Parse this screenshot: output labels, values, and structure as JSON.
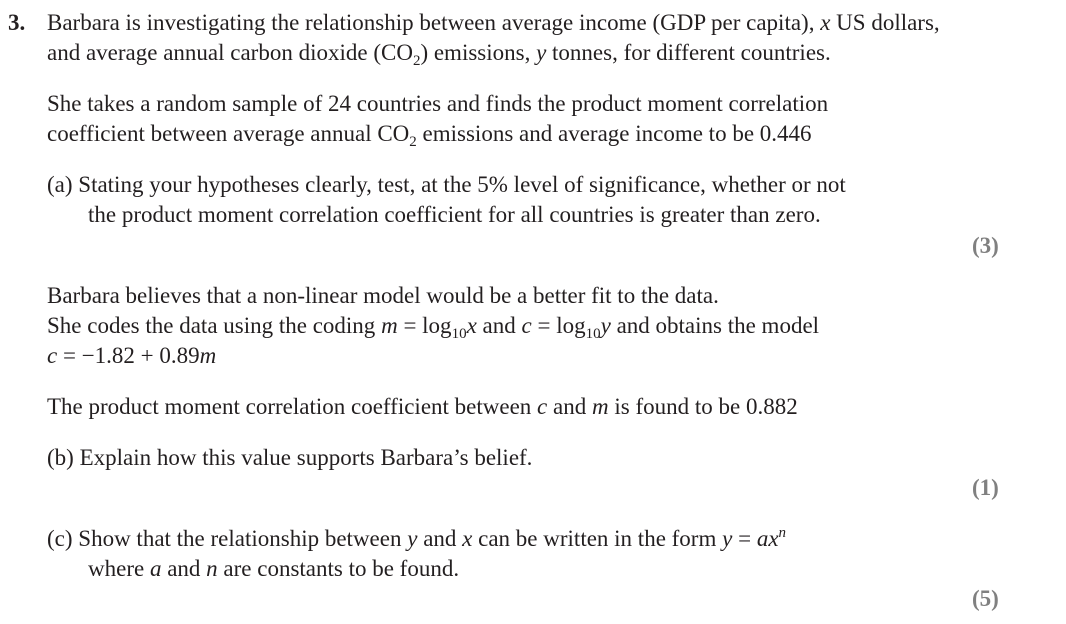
{
  "question": {
    "number": "3.",
    "intro": {
      "line1": {
        "a": "Barbara is investigating the relationship between average income (GDP per capita), ",
        "var_x": "x",
        "b": " US dollars,"
      },
      "line2": {
        "a": "and average annual carbon dioxide (CO",
        "sub2": "2",
        "b": ") emissions, ",
        "var_y": "y",
        "c": " tonnes, for different countries."
      }
    },
    "sample": {
      "line1": "She takes a random sample of 24 countries and finds the product moment correlation",
      "line2": {
        "a": "coefficient between average annual CO",
        "sub2": "2",
        "b": " emissions and average income to be 0.446"
      }
    },
    "part_a": {
      "line1": "(a) Stating your hypotheses clearly, test, at the 5% level of significance, whether or not",
      "line2": "the product moment correlation coefficient for all countries is greater than zero.",
      "marks": "(3)"
    },
    "model": {
      "line1": "Barbara believes that a non-linear model would be a better fit to the data.",
      "line2": {
        "a": "She codes the data using the coding  ",
        "m": "m",
        "eq1": " = log",
        "sub1": "10",
        "x": "x",
        "mid": "  and  ",
        "c": "c",
        "eq2": " = log",
        "sub2": "10",
        "y": "y",
        "end": "  and obtains the model"
      },
      "line3": {
        "c": "c",
        "eq": " = −1.82 + 0.89",
        "m": "m"
      }
    },
    "pmcc": {
      "a": "The product moment correlation coefficient between ",
      "c": "c",
      "mid": " and ",
      "m": "m",
      "b": " is found to be 0.882"
    },
    "part_b": {
      "line1": "(b) Explain how this value supports Barbara’s belief.",
      "marks": "(1)"
    },
    "part_c": {
      "line1": {
        "a": "(c) Show that the relationship between ",
        "y": "y",
        "mid": " and ",
        "x": "x",
        "b": " can be written in the form  ",
        "y2": "y",
        "eq": " = ",
        "ax": "ax",
        "n_sup": "n"
      },
      "line2": {
        "a": "where ",
        "a_var": "a",
        "mid": " and ",
        "n_var": "n",
        "b": " are constants to be found."
      },
      "marks": "(5)"
    }
  }
}
